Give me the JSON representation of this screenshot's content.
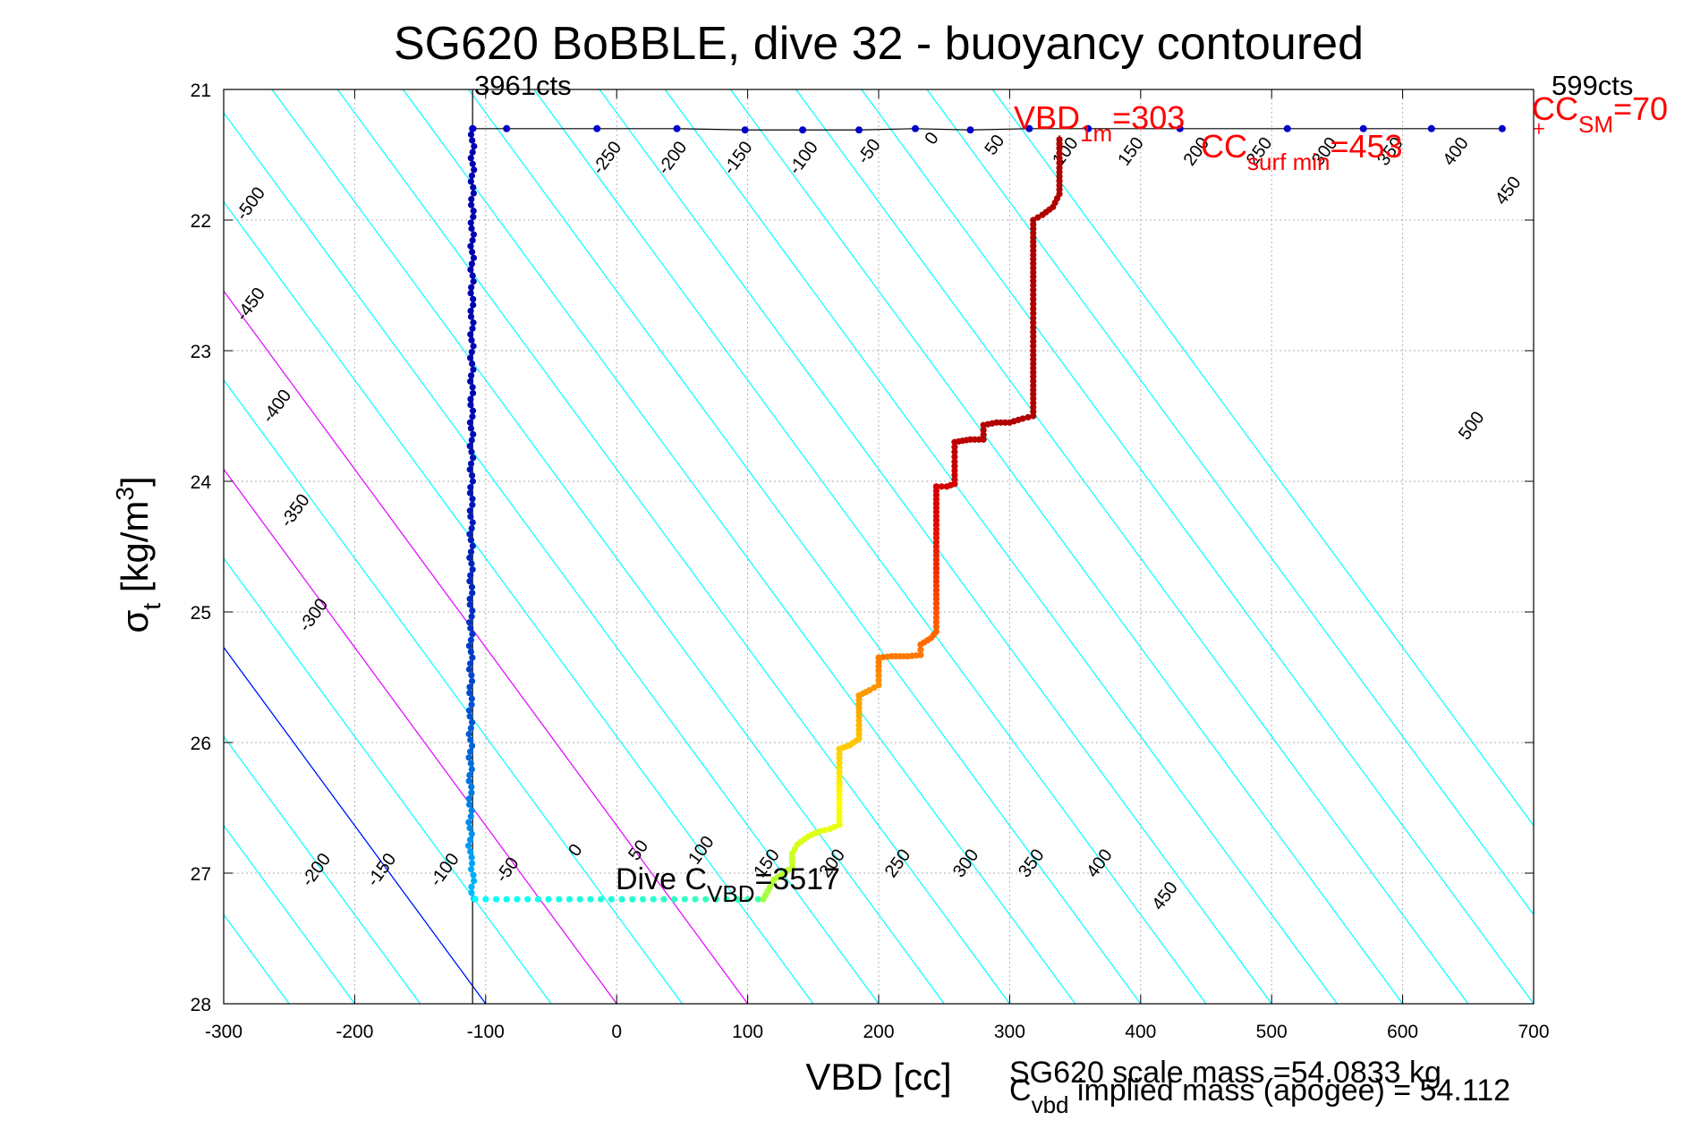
{
  "chart_data": {
    "type": "scatter",
    "title": "SG620 BoBBLE, dive 32 - buoyancy contoured",
    "xlabel": "VBD [cc]",
    "ylabel": {
      "base": "σ",
      "sub": "t",
      "unit": " [kg/m",
      "sup": "3",
      "close": "]"
    },
    "xlim": [
      -300,
      700
    ],
    "ylim": [
      21,
      28
    ],
    "y_reversed": true,
    "grid": true,
    "x_ticks": [
      "-300",
      "-200",
      "-100",
      "0",
      "100",
      "200",
      "300",
      "400",
      "500",
      "600",
      "700"
    ],
    "y_ticks": [
      "21",
      "22",
      "23",
      "24",
      "25",
      "26",
      "27",
      "28"
    ],
    "contour_lines": {
      "color_cyan": "#00ffff",
      "color_blue": "#0000ff",
      "color_magenta": "#ff00ff",
      "slope_cc_per_sigma": 73.3,
      "offsets_at_sigma_28": [
        -350,
        -300,
        -250,
        -200,
        -150,
        -100,
        -50,
        0,
        50,
        100,
        150,
        200,
        250,
        300,
        350,
        400,
        450,
        500,
        550,
        600,
        650,
        700,
        750,
        800
      ],
      "blue_offset": -100,
      "magenta_offsets": [
        0,
        100
      ],
      "labels_bottom": [
        {
          "text": "-200",
          "x": -226,
          "y": 27.0
        },
        {
          "text": "-150",
          "x": -176,
          "y": 27.0
        },
        {
          "text": "-100",
          "x": -128,
          "y": 27.0
        },
        {
          "text": "-50",
          "x": -80,
          "y": 27.0
        },
        {
          "text": "0",
          "x": -28,
          "y": 26.85
        },
        {
          "text": "50",
          "x": 20,
          "y": 26.85
        },
        {
          "text": "100",
          "x": 68,
          "y": 26.85
        },
        {
          "text": "150",
          "x": 118,
          "y": 26.95
        },
        {
          "text": "200",
          "x": 168,
          "y": 26.95
        },
        {
          "text": "250",
          "x": 218,
          "y": 26.95
        },
        {
          "text": "300",
          "x": 270,
          "y": 26.95
        },
        {
          "text": "350",
          "x": 320,
          "y": 26.95
        },
        {
          "text": "400",
          "x": 372,
          "y": 26.95
        },
        {
          "text": "450",
          "x": 422,
          "y": 27.2
        }
      ],
      "labels_left": [
        {
          "text": "-500",
          "x": -276,
          "y": 21.9
        },
        {
          "text": "-450",
          "x": -276,
          "y": 22.67
        },
        {
          "text": "-400",
          "x": -256,
          "y": 23.45
        },
        {
          "text": "-350",
          "x": -242,
          "y": 24.25
        },
        {
          "text": "-300",
          "x": -228,
          "y": 25.05
        }
      ],
      "labels_top": [
        {
          "text": "-250",
          "x": -4,
          "y": 21.55
        },
        {
          "text": "-200",
          "x": 46,
          "y": 21.55
        },
        {
          "text": "-150",
          "x": 96,
          "y": 21.55
        },
        {
          "text": "-100",
          "x": 146,
          "y": 21.55
        },
        {
          "text": "-50",
          "x": 196,
          "y": 21.5
        },
        {
          "text": "0",
          "x": 244,
          "y": 21.4
        },
        {
          "text": "50",
          "x": 292,
          "y": 21.45
        },
        {
          "text": "100",
          "x": 346,
          "y": 21.5
        },
        {
          "text": "150",
          "x": 396,
          "y": 21.5
        },
        {
          "text": "200",
          "x": 446,
          "y": 21.5
        },
        {
          "text": "250",
          "x": 494,
          "y": 21.5
        },
        {
          "text": "300",
          "x": 544,
          "y": 21.5
        },
        {
          "text": "350",
          "x": 594,
          "y": 21.5
        },
        {
          "text": "400",
          "x": 644,
          "y": 21.5
        },
        {
          "text": "450",
          "x": 684,
          "y": 21.8
        },
        {
          "text": "500",
          "x": 656,
          "y": 23.6
        }
      ]
    },
    "reference_lines": {
      "vertical_x": -110,
      "horizontal_y": 21.3,
      "color": "#000000"
    },
    "surface_points": {
      "color": "#0000cc",
      "x": [
        -110,
        -84,
        -15,
        46,
        98,
        142,
        185,
        228,
        270,
        315,
        360,
        430,
        512,
        570,
        622,
        676
      ],
      "y": [
        21.3,
        21.3,
        21.3,
        21.3,
        21.31,
        21.31,
        21.31,
        21.3,
        21.31,
        21.3,
        21.3,
        21.3,
        21.3,
        21.3,
        21.3,
        21.3
      ]
    },
    "descent_profile": {
      "color_top": "#0000b0",
      "color_bottom": "#00bfff",
      "x_approx": -110,
      "y_start": 21.3,
      "y_end": 27.2
    },
    "bottom_points": {
      "color_start": "#00ffff",
      "color_end": "#40ffb0",
      "y": 27.2,
      "x_start": -108,
      "x_end": 112
    },
    "ascent_profile": {
      "colors": [
        "#a0ff40",
        "#ffff00",
        "#ffa500",
        "#ff5000",
        "#e00000",
        "#b00000"
      ],
      "points": [
        [
          112,
          27.2
        ],
        [
          120,
          27.05
        ],
        [
          128,
          27.0
        ],
        [
          134,
          26.95
        ],
        [
          134,
          26.85
        ],
        [
          138,
          26.78
        ],
        [
          146,
          26.72
        ],
        [
          155,
          26.68
        ],
        [
          163,
          26.66
        ],
        [
          170,
          26.63
        ],
        [
          170,
          26.5
        ],
        [
          170,
          26.3
        ],
        [
          170,
          26.05
        ],
        [
          178,
          26.02
        ],
        [
          185,
          25.97
        ],
        [
          185,
          25.8
        ],
        [
          185,
          25.64
        ],
        [
          193,
          25.6
        ],
        [
          200,
          25.56
        ],
        [
          200,
          25.45
        ],
        [
          200,
          25.35
        ],
        [
          210,
          25.34
        ],
        [
          222,
          25.34
        ],
        [
          232,
          25.33
        ],
        [
          232,
          25.25
        ],
        [
          240,
          25.2
        ],
        [
          244,
          25.15
        ],
        [
          244,
          24.9
        ],
        [
          244,
          24.6
        ],
        [
          244,
          24.3
        ],
        [
          244,
          24.04
        ],
        [
          252,
          24.04
        ],
        [
          258,
          24.02
        ],
        [
          258,
          23.85
        ],
        [
          258,
          23.7
        ],
        [
          270,
          23.68
        ],
        [
          280,
          23.68
        ],
        [
          280,
          23.57
        ],
        [
          290,
          23.55
        ],
        [
          300,
          23.55
        ],
        [
          310,
          23.52
        ],
        [
          318,
          23.5
        ],
        [
          318,
          23.3
        ],
        [
          318,
          23.0
        ],
        [
          318,
          22.75
        ],
        [
          318,
          22.5
        ],
        [
          318,
          22.3
        ],
        [
          318,
          22.0
        ],
        [
          325,
          21.96
        ],
        [
          333,
          21.9
        ],
        [
          338,
          21.8
        ],
        [
          338,
          21.6
        ],
        [
          338,
          21.45
        ],
        [
          338,
          21.35
        ]
      ]
    },
    "annotations": {
      "left_cts": "3961cts",
      "right_cts": "599cts",
      "vbd1m": {
        "base": "VBD",
        "sub": "1m",
        "value": "=303"
      },
      "cc_surf_min": {
        "base": "CC",
        "sub": "surf min",
        "value": "=453"
      },
      "cc_sm": {
        "base": "CC",
        "sub": "SM",
        "value": "=70"
      },
      "dive_cvbd": {
        "base": "Dive C",
        "sub": "VBD",
        "value": "=3517"
      },
      "scale_mass": "SG620 scale mass =54.0833 kg",
      "implied_mass": {
        "base": "C",
        "sub": "vbd",
        "value": " implied mass (apogee) = 54.112"
      }
    }
  }
}
